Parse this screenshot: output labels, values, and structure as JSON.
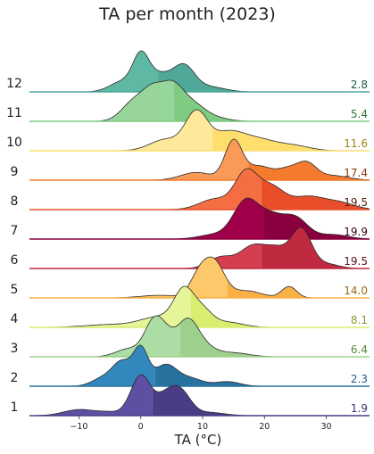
{
  "chart_data": {
    "type": "area",
    "title": "TA per month (2023)",
    "xlabel": "TA (°C)",
    "xlim": [
      -18,
      37
    ],
    "xticks": [
      -10,
      0,
      10,
      20,
      30
    ],
    "series": [
      {
        "label": "1",
        "value": "1.9",
        "color": "#5e4fa2",
        "dark": "#4a3d85",
        "labelColor": "#3f3370",
        "peaks": [
          [
            -10,
            2.5,
            0.15
          ],
          [
            -5,
            2,
            0.08
          ],
          [
            0,
            1.6,
            1.0
          ],
          [
            4,
            1.6,
            0.45
          ],
          [
            6.5,
            1.6,
            0.55
          ],
          [
            11,
            2.5,
            0.08
          ]
        ]
      },
      {
        "label": "2",
        "value": "2.3",
        "color": "#3288bd",
        "dark": "#2872a0",
        "labelColor": "#23608a",
        "peaks": [
          [
            -6,
            1.8,
            0.22
          ],
          [
            -3,
            1.5,
            0.6
          ],
          [
            0,
            1.2,
            0.95
          ],
          [
            4,
            1.8,
            0.55
          ],
          [
            8,
            2.0,
            0.2
          ],
          [
            14,
            2.0,
            0.12
          ]
        ]
      },
      {
        "label": "3",
        "value": "6.4",
        "color": "#abdda4",
        "dark": "#9fd08b",
        "labelColor": "#5a8a3a",
        "peaks": [
          [
            -2,
            2.0,
            0.2
          ],
          [
            2,
            1.5,
            0.8
          ],
          [
            4,
            1.5,
            0.45
          ],
          [
            7.5,
            1.7,
            0.85
          ],
          [
            10,
            2.0,
            0.25
          ],
          [
            15,
            2.5,
            0.1
          ]
        ]
      },
      {
        "label": "4",
        "value": "8.1",
        "color": "#e6f598",
        "dark": "#d9ee70",
        "labelColor": "#8a9a2a",
        "peaks": [
          [
            -5,
            4.0,
            0.08
          ],
          [
            3,
            3.0,
            0.3
          ],
          [
            7,
            1.6,
            1.0
          ],
          [
            10,
            1.6,
            0.45
          ],
          [
            14,
            2.5,
            0.15
          ]
        ]
      },
      {
        "label": "5",
        "value": "14.0",
        "color": "#fdc86a",
        "dark": "#f9b046",
        "labelColor": "#9a6a10",
        "peaks": [
          [
            3,
            3.0,
            0.08
          ],
          [
            9.5,
            1.5,
            0.7
          ],
          [
            12,
            1.6,
            1.0
          ],
          [
            17,
            2.5,
            0.22
          ],
          [
            24,
            1.2,
            0.35
          ]
        ]
      },
      {
        "label": "6",
        "value": "19.5",
        "color": "#d53e4f",
        "dark": "#c02a40",
        "labelColor": "#5a1020",
        "peaks": [
          [
            13,
            2.0,
            0.3
          ],
          [
            18,
            2.0,
            0.55
          ],
          [
            22,
            2.0,
            0.5
          ],
          [
            26,
            1.6,
            1.0
          ],
          [
            30,
            2.0,
            0.12
          ]
        ]
      },
      {
        "label": "7",
        "value": "19.9",
        "color": "#a0004a",
        "dark": "#8a003e",
        "labelColor": "#3a0018",
        "peaks": [
          [
            12,
            2.5,
            0.12
          ],
          [
            17,
            2.0,
            1.0
          ],
          [
            21,
            2.0,
            0.55
          ],
          [
            25,
            2.0,
            0.55
          ],
          [
            31,
            2.5,
            0.12
          ]
        ]
      },
      {
        "label": "8",
        "value": "19.5",
        "color": "#f46d43",
        "dark": "#e84e2a",
        "labelColor": "#5a2010",
        "peaks": [
          [
            12,
            2.5,
            0.3
          ],
          [
            17,
            1.8,
            1.0
          ],
          [
            21,
            2.2,
            0.65
          ],
          [
            27,
            2.5,
            0.35
          ],
          [
            32,
            2.5,
            0.2
          ]
        ]
      },
      {
        "label": "9",
        "value": "17.4",
        "color": "#fa9a58",
        "dark": "#f47a2e",
        "labelColor": "#8a3a10",
        "peaks": [
          [
            9,
            2.5,
            0.2
          ],
          [
            15,
            1.4,
            1.0
          ],
          [
            19,
            2.0,
            0.35
          ],
          [
            24,
            2.0,
            0.3
          ],
          [
            27,
            1.5,
            0.35
          ],
          [
            31,
            2.5,
            0.12
          ]
        ]
      },
      {
        "label": "10",
        "value": "11.6",
        "color": "#fee89a",
        "dark": "#fedf6e",
        "labelColor": "#a08010",
        "peaks": [
          [
            4,
            2.5,
            0.3
          ],
          [
            9,
            1.8,
            1.0
          ],
          [
            14,
            2.5,
            0.45
          ],
          [
            19,
            3.0,
            0.3
          ],
          [
            25,
            2.5,
            0.12
          ]
        ]
      },
      {
        "label": "11",
        "value": "5.4",
        "color": "#98d59a",
        "dark": "#7fcb82",
        "labelColor": "#2a7a3a",
        "peaks": [
          [
            -1,
            2.0,
            0.65
          ],
          [
            2,
            1.6,
            0.8
          ],
          [
            5,
            1.7,
            1.0
          ],
          [
            8,
            2.0,
            0.5
          ],
          [
            11,
            2.5,
            0.15
          ]
        ]
      },
      {
        "label": "12",
        "value": "2.8",
        "color": "#5fb8a4",
        "dark": "#4fa898",
        "labelColor": "#1a5a4a",
        "peaks": [
          [
            -3,
            2.0,
            0.3
          ],
          [
            0,
            1.3,
            0.95
          ],
          [
            3,
            2.0,
            0.5
          ],
          [
            7,
            1.7,
            0.72
          ],
          [
            11,
            2.5,
            0.15
          ]
        ]
      }
    ]
  }
}
